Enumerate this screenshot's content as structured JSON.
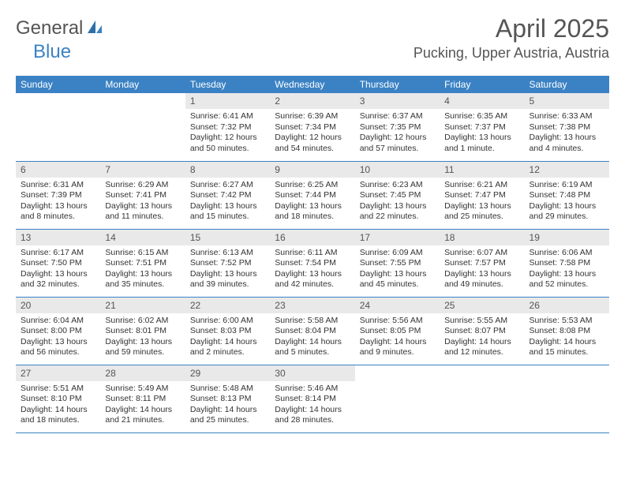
{
  "brand": {
    "name1": "General",
    "name2": "Blue"
  },
  "title": "April 2025",
  "location": "Pucking, Upper Austria, Austria",
  "colors": {
    "accent": "#3b82c4",
    "header_bg": "#3b82c4",
    "daynum_bg": "#e9e9e9",
    "text": "#333"
  },
  "daynames": [
    "Sunday",
    "Monday",
    "Tuesday",
    "Wednesday",
    "Thursday",
    "Friday",
    "Saturday"
  ],
  "weeks": [
    [
      null,
      null,
      {
        "n": "1",
        "sr": "Sunrise: 6:41 AM",
        "ss": "Sunset: 7:32 PM",
        "dl": "Daylight: 12 hours and 50 minutes."
      },
      {
        "n": "2",
        "sr": "Sunrise: 6:39 AM",
        "ss": "Sunset: 7:34 PM",
        "dl": "Daylight: 12 hours and 54 minutes."
      },
      {
        "n": "3",
        "sr": "Sunrise: 6:37 AM",
        "ss": "Sunset: 7:35 PM",
        "dl": "Daylight: 12 hours and 57 minutes."
      },
      {
        "n": "4",
        "sr": "Sunrise: 6:35 AM",
        "ss": "Sunset: 7:37 PM",
        "dl": "Daylight: 13 hours and 1 minute."
      },
      {
        "n": "5",
        "sr": "Sunrise: 6:33 AM",
        "ss": "Sunset: 7:38 PM",
        "dl": "Daylight: 13 hours and 4 minutes."
      }
    ],
    [
      {
        "n": "6",
        "sr": "Sunrise: 6:31 AM",
        "ss": "Sunset: 7:39 PM",
        "dl": "Daylight: 13 hours and 8 minutes."
      },
      {
        "n": "7",
        "sr": "Sunrise: 6:29 AM",
        "ss": "Sunset: 7:41 PM",
        "dl": "Daylight: 13 hours and 11 minutes."
      },
      {
        "n": "8",
        "sr": "Sunrise: 6:27 AM",
        "ss": "Sunset: 7:42 PM",
        "dl": "Daylight: 13 hours and 15 minutes."
      },
      {
        "n": "9",
        "sr": "Sunrise: 6:25 AM",
        "ss": "Sunset: 7:44 PM",
        "dl": "Daylight: 13 hours and 18 minutes."
      },
      {
        "n": "10",
        "sr": "Sunrise: 6:23 AM",
        "ss": "Sunset: 7:45 PM",
        "dl": "Daylight: 13 hours and 22 minutes."
      },
      {
        "n": "11",
        "sr": "Sunrise: 6:21 AM",
        "ss": "Sunset: 7:47 PM",
        "dl": "Daylight: 13 hours and 25 minutes."
      },
      {
        "n": "12",
        "sr": "Sunrise: 6:19 AM",
        "ss": "Sunset: 7:48 PM",
        "dl": "Daylight: 13 hours and 29 minutes."
      }
    ],
    [
      {
        "n": "13",
        "sr": "Sunrise: 6:17 AM",
        "ss": "Sunset: 7:50 PM",
        "dl": "Daylight: 13 hours and 32 minutes."
      },
      {
        "n": "14",
        "sr": "Sunrise: 6:15 AM",
        "ss": "Sunset: 7:51 PM",
        "dl": "Daylight: 13 hours and 35 minutes."
      },
      {
        "n": "15",
        "sr": "Sunrise: 6:13 AM",
        "ss": "Sunset: 7:52 PM",
        "dl": "Daylight: 13 hours and 39 minutes."
      },
      {
        "n": "16",
        "sr": "Sunrise: 6:11 AM",
        "ss": "Sunset: 7:54 PM",
        "dl": "Daylight: 13 hours and 42 minutes."
      },
      {
        "n": "17",
        "sr": "Sunrise: 6:09 AM",
        "ss": "Sunset: 7:55 PM",
        "dl": "Daylight: 13 hours and 45 minutes."
      },
      {
        "n": "18",
        "sr": "Sunrise: 6:07 AM",
        "ss": "Sunset: 7:57 PM",
        "dl": "Daylight: 13 hours and 49 minutes."
      },
      {
        "n": "19",
        "sr": "Sunrise: 6:06 AM",
        "ss": "Sunset: 7:58 PM",
        "dl": "Daylight: 13 hours and 52 minutes."
      }
    ],
    [
      {
        "n": "20",
        "sr": "Sunrise: 6:04 AM",
        "ss": "Sunset: 8:00 PM",
        "dl": "Daylight: 13 hours and 56 minutes."
      },
      {
        "n": "21",
        "sr": "Sunrise: 6:02 AM",
        "ss": "Sunset: 8:01 PM",
        "dl": "Daylight: 13 hours and 59 minutes."
      },
      {
        "n": "22",
        "sr": "Sunrise: 6:00 AM",
        "ss": "Sunset: 8:03 PM",
        "dl": "Daylight: 14 hours and 2 minutes."
      },
      {
        "n": "23",
        "sr": "Sunrise: 5:58 AM",
        "ss": "Sunset: 8:04 PM",
        "dl": "Daylight: 14 hours and 5 minutes."
      },
      {
        "n": "24",
        "sr": "Sunrise: 5:56 AM",
        "ss": "Sunset: 8:05 PM",
        "dl": "Daylight: 14 hours and 9 minutes."
      },
      {
        "n": "25",
        "sr": "Sunrise: 5:55 AM",
        "ss": "Sunset: 8:07 PM",
        "dl": "Daylight: 14 hours and 12 minutes."
      },
      {
        "n": "26",
        "sr": "Sunrise: 5:53 AM",
        "ss": "Sunset: 8:08 PM",
        "dl": "Daylight: 14 hours and 15 minutes."
      }
    ],
    [
      {
        "n": "27",
        "sr": "Sunrise: 5:51 AM",
        "ss": "Sunset: 8:10 PM",
        "dl": "Daylight: 14 hours and 18 minutes."
      },
      {
        "n": "28",
        "sr": "Sunrise: 5:49 AM",
        "ss": "Sunset: 8:11 PM",
        "dl": "Daylight: 14 hours and 21 minutes."
      },
      {
        "n": "29",
        "sr": "Sunrise: 5:48 AM",
        "ss": "Sunset: 8:13 PM",
        "dl": "Daylight: 14 hours and 25 minutes."
      },
      {
        "n": "30",
        "sr": "Sunrise: 5:46 AM",
        "ss": "Sunset: 8:14 PM",
        "dl": "Daylight: 14 hours and 28 minutes."
      },
      null,
      null,
      null
    ]
  ]
}
